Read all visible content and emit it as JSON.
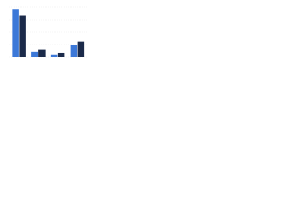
{
  "chart_data": {
    "type": "bar",
    "categories": [
      null,
      null,
      null,
      null
    ],
    "series": [
      {
        "color": "#3c78d8",
        "values": [
          96,
          11,
          4,
          24
        ]
      },
      {
        "color": "#1b2a4a",
        "values": [
          83,
          15,
          9,
          31
        ]
      }
    ],
    "ylim": [
      0,
      100
    ],
    "yticks": [
      0,
      25,
      50,
      75,
      100
    ],
    "grid": true
  }
}
